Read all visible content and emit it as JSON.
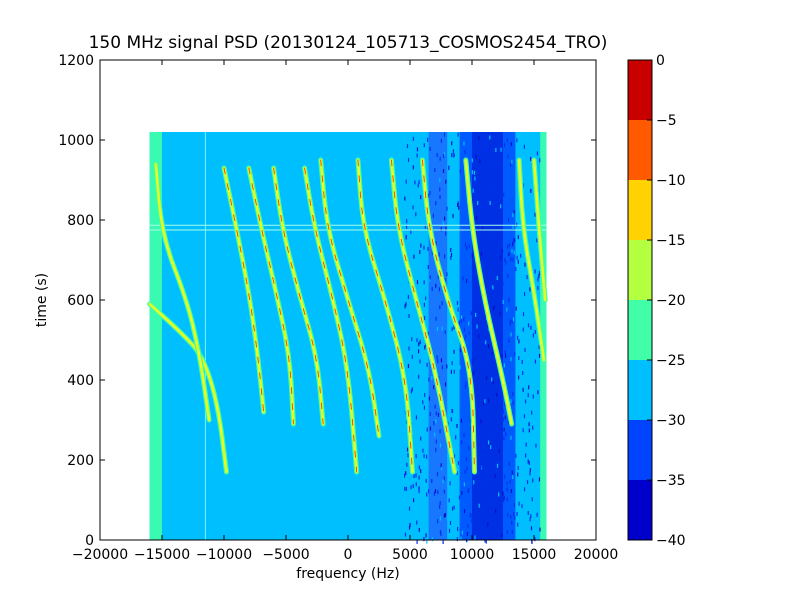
{
  "chart_data": {
    "type": "heatmap",
    "title": "150 MHz signal PSD (20130124_105713_COSMOS2454_TRO)",
    "xlabel": "frequency (Hz)",
    "ylabel": "time (s)",
    "xlim": [
      -20000,
      20000
    ],
    "ylim": [
      0,
      1200
    ],
    "x_ticks": [
      -20000,
      -15000,
      -10000,
      -5000,
      0,
      5000,
      10000,
      15000,
      20000
    ],
    "y_ticks": [
      0,
      200,
      400,
      600,
      800,
      1000,
      1200
    ],
    "data_extent": {
      "x": [
        -16000,
        16000
      ],
      "y": [
        0,
        1020
      ]
    },
    "grid": false,
    "colorbar": {
      "levels": [
        -40,
        -35,
        -30,
        -25,
        -20,
        -15,
        -10,
        -5,
        0
      ],
      "colors": [
        "#0000cd",
        "#0044ff",
        "#00bfff",
        "#40ffa8",
        "#b4ff40",
        "#ffd200",
        "#ff5a00",
        "#c80000"
      ],
      "tick_labels": [
        "0",
        "−5",
        "−10",
        "−15",
        "−20",
        "−25",
        "−30",
        "−35",
        "−40"
      ]
    },
    "background_color": "#00bfff",
    "noise_bands": [
      {
        "x": [
          -16000,
          -15000
        ],
        "color": "#40ffa8"
      },
      {
        "x": [
          6500,
          8000
        ],
        "color": "#1a70ff"
      },
      {
        "x": [
          9000,
          10000
        ],
        "color": "#0050ff"
      },
      {
        "x": [
          10000,
          12500
        ],
        "color": "#0020e0"
      },
      {
        "x": [
          12500,
          13500
        ],
        "color": "#0050ff"
      },
      {
        "x": [
          15500,
          16000
        ],
        "color": "#40ffa8"
      }
    ],
    "horizontal_lines": [
      775,
      787
    ],
    "series": [
      {
        "x": [
          -16000,
          -13500,
          -11700,
          -10500,
          -9800
        ],
        "y": [
          590,
          520,
          460,
          340,
          170
        ]
      },
      {
        "x": [
          -15500,
          -15000,
          -13000,
          -12000,
          -11200
        ],
        "y": [
          940,
          760,
          600,
          470,
          300
        ]
      },
      {
        "x": [
          -10000,
          -9000,
          -8000,
          -7300,
          -6800
        ],
        "y": [
          930,
          780,
          620,
          470,
          320
        ]
      },
      {
        "x": [
          -8000,
          -7000,
          -5800,
          -4700,
          -4400
        ],
        "y": [
          930,
          780,
          620,
          460,
          290
        ]
      },
      {
        "x": [
          -6000,
          -5300,
          -4000,
          -2500,
          -2000
        ],
        "y": [
          930,
          780,
          620,
          460,
          290
        ]
      },
      {
        "x": [
          -3500,
          -2700,
          -1200,
          0,
          700
        ],
        "y": [
          930,
          780,
          600,
          430,
          170
        ]
      },
      {
        "x": [
          -2200,
          -1700,
          0,
          1700,
          2500
        ],
        "y": [
          950,
          780,
          600,
          430,
          260
        ]
      },
      {
        "x": [
          800,
          1200,
          3000,
          4700,
          5200
        ],
        "y": [
          950,
          780,
          600,
          400,
          170
        ]
      },
      {
        "x": [
          3500,
          4000,
          5500,
          7000,
          8600
        ],
        "y": [
          950,
          780,
          600,
          430,
          170
        ]
      },
      {
        "x": [
          6000,
          6500,
          8000,
          10000,
          10200
        ],
        "y": [
          950,
          780,
          600,
          430,
          170
        ]
      },
      {
        "x": [
          9500,
          10000,
          11000,
          12500,
          13200
        ],
        "y": [
          950,
          780,
          600,
          400,
          290
        ]
      },
      {
        "x": [
          13800,
          14100,
          15000,
          15800
        ],
        "y": [
          950,
          780,
          620,
          450
        ]
      },
      {
        "x": [
          15000,
          15400,
          15900
        ],
        "y": [
          950,
          780,
          600
        ]
      }
    ]
  }
}
